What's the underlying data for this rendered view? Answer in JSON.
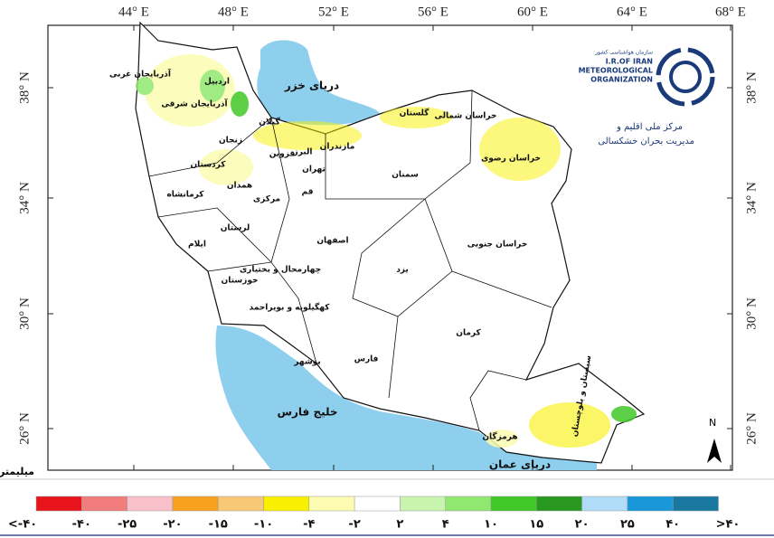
{
  "axes": {
    "lon_labels": [
      "44° E",
      "48° E",
      "52° E",
      "56° E",
      "60° E",
      "64° E",
      "68° E"
    ],
    "lat_labels": [
      "38° N",
      "34° N",
      "30° N",
      "26° N"
    ]
  },
  "water_labels": [
    "دریای خزر",
    "خلیج فارس",
    "دریای عمان"
  ],
  "provinces": [
    "آذربایجان غربی",
    "اردبیل",
    "آذربایجان شرقی",
    "زنجان",
    "کردستان",
    "گیلان",
    "قزوین",
    "البرز",
    "تهران",
    "مازندران",
    "گلستان",
    "خراسان شمالی",
    "خراسان رضوی",
    "سمنان",
    "قم",
    "مرکزی",
    "همدان",
    "کرمانشاه",
    "لرستان",
    "ایلام",
    "اصفهان",
    "خراسان جنوبی",
    "چهارمحال و بختیاری",
    "یزد",
    "خوزستان",
    "کهگیلویه و بویراحمد",
    "کرمان",
    "بوشهر",
    "فارس",
    "سیستان و بلوچستان",
    "هرمزگان"
  ],
  "logo": {
    "name_fa": "سازمان هواشناسی کشور",
    "line1": "I.R.OF IRAN",
    "line2": "METEOROLOGICAL",
    "line3": "ORGANIZATION",
    "center_1": "مرکز ملی اقلیم و",
    "center_2": "مدیریت بحران خشکسالی"
  },
  "north": "N",
  "legend": {
    "unit": "میلیمتر",
    "colors": [
      "#e8141c",
      "#f07c7c",
      "#f8c0c8",
      "#f8a020",
      "#f8c878",
      "#f8f000",
      "#fcfcb0",
      "#ffffff",
      "#c8f4b0",
      "#90e870",
      "#40c828",
      "#289820",
      "#b0dcf8",
      "#1898d8",
      "#1878a0"
    ],
    "labels": [
      "<-۴۰",
      "-۴۰",
      "-۲۵",
      "-۲۰",
      "-۱۵",
      "-۱۰",
      "-۴",
      "-۲",
      "۲",
      "۴",
      "۱۰",
      "۱۵",
      "۲۰",
      "۲۵",
      "۴۰",
      ">۴۰"
    ]
  }
}
